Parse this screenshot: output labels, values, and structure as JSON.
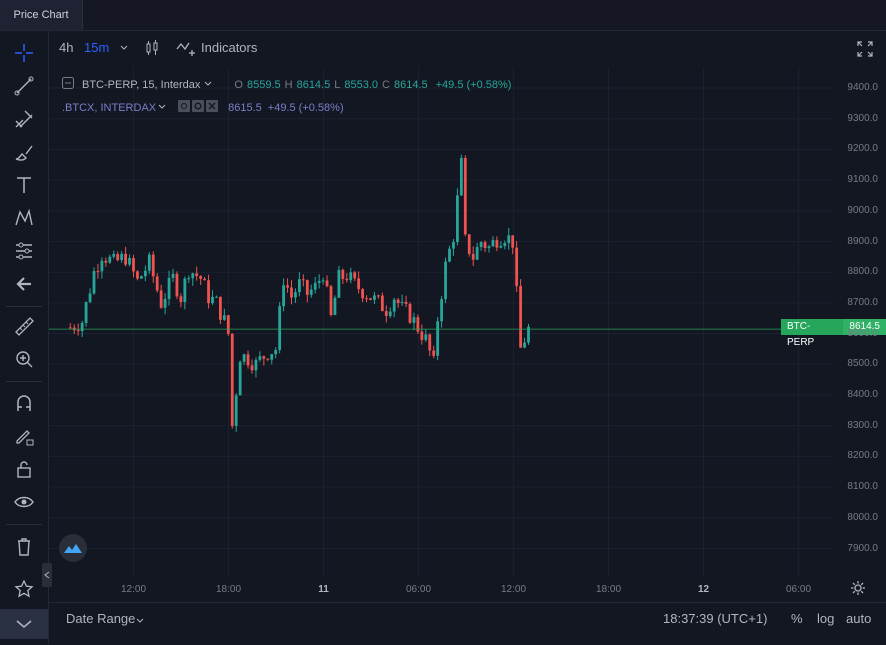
{
  "tab": {
    "title": "Price Chart"
  },
  "toolbar": {
    "intervals": [
      "4h",
      "15m"
    ],
    "indicators_label": "Indicators"
  },
  "legend": {
    "symbol": "BTC-PERP, 15, Interdax",
    "o_label": "O",
    "o": "8559.5",
    "h_label": "H",
    "h": "8614.5",
    "l_label": "L",
    "l": "8553.0",
    "c_label": "C",
    "c": "8614.5",
    "change": "+49.5 (+0.58%)"
  },
  "compare": {
    "symbol": ".BTCX, INTERDAX",
    "price": "8615.5",
    "change": "+49.5 (+0.58%)"
  },
  "price_tag": {
    "symbol": "BTC-PERP",
    "value": "8614.5"
  },
  "y_ticks": [
    "9400.0",
    "9300.0",
    "9200.0",
    "9100.0",
    "9000.0",
    "8900.0",
    "8800.0",
    "8700.0",
    "8600.0",
    "8500.0",
    "8400.0",
    "8300.0",
    "8200.0",
    "8100.0",
    "8000.0",
    "7900.0"
  ],
  "x_ticks": [
    {
      "label": "12:00",
      "bold": false
    },
    {
      "label": "18:00",
      "bold": false
    },
    {
      "label": "11",
      "bold": true
    },
    {
      "label": "06:00",
      "bold": false
    },
    {
      "label": "12:00",
      "bold": false
    },
    {
      "label": "18:00",
      "bold": false
    },
    {
      "label": "12",
      "bold": true
    },
    {
      "label": "06:00",
      "bold": false
    }
  ],
  "bottom": {
    "date_range": "Date Range",
    "time": "18:37:39 (UTC+1)",
    "percent": "%",
    "log": "log",
    "auto": "auto"
  },
  "colors": {
    "up": "#26a69a",
    "down": "#ef5350",
    "accent": "#2962ff"
  },
  "chart_data": {
    "type": "candlestick",
    "ylim": [
      7850,
      9450
    ],
    "x_range_hours": [
      8,
      35
    ],
    "last_price": 8614.5,
    "series": [
      {
        "t": 8.0,
        "close": 8620
      },
      {
        "t": 8.75,
        "close": 8640
      },
      {
        "t": 9.5,
        "close": 8800
      },
      {
        "t": 10.0,
        "close": 8860
      },
      {
        "t": 10.75,
        "close": 8830
      },
      {
        "t": 11.5,
        "close": 8850
      },
      {
        "t": 12.25,
        "close": 8770
      },
      {
        "t": 13.0,
        "close": 8830
      },
      {
        "t": 13.75,
        "close": 8700
      },
      {
        "t": 14.5,
        "close": 8780
      },
      {
        "t": 15.0,
        "close": 8720
      },
      {
        "t": 15.5,
        "close": 8810
      },
      {
        "t": 16.25,
        "close": 8780
      },
      {
        "t": 16.75,
        "close": 8720
      },
      {
        "t": 17.25,
        "close": 8700
      },
      {
        "t": 17.75,
        "close": 8640
      },
      {
        "t": 18.0,
        "close": 8600
      },
      {
        "t": 18.25,
        "close": 8300
      },
      {
        "t": 18.75,
        "close": 8530
      },
      {
        "t": 19.25,
        "close": 8520
      },
      {
        "t": 19.75,
        "close": 8500
      },
      {
        "t": 20.5,
        "close": 8540
      },
      {
        "t": 21.0,
        "close": 8550
      },
      {
        "t": 21.5,
        "close": 8780
      },
      {
        "t": 22.0,
        "close": 8720
      },
      {
        "t": 22.5,
        "close": 8760
      },
      {
        "t": 23.0,
        "close": 8730
      },
      {
        "t": 23.5,
        "close": 8750
      },
      {
        "t": 24.0,
        "close": 8800
      },
      {
        "t": 24.5,
        "close": 8650
      },
      {
        "t": 25.0,
        "close": 8780
      },
      {
        "t": 25.5,
        "close": 8790
      },
      {
        "t": 26.0,
        "close": 8760
      },
      {
        "t": 26.5,
        "close": 8740
      },
      {
        "t": 27.0,
        "close": 8720
      },
      {
        "t": 27.5,
        "close": 8700
      },
      {
        "t": 28.0,
        "close": 8680
      },
      {
        "t": 28.5,
        "close": 8720
      },
      {
        "t": 29.0,
        "close": 8680
      },
      {
        "t": 29.5,
        "close": 8660
      },
      {
        "t": 30.0,
        "close": 8620
      },
      {
        "t": 30.5,
        "close": 8580
      },
      {
        "t": 31.0,
        "close": 8500
      },
      {
        "t": 31.25,
        "close": 8650
      },
      {
        "t": 31.75,
        "close": 8820
      },
      {
        "t": 32.25,
        "close": 8920
      },
      {
        "t": 32.75,
        "close": 9150
      },
      {
        "t": 33.0,
        "close": 8900
      },
      {
        "t": 33.5,
        "close": 8850
      },
      {
        "t": 34.0,
        "close": 8900
      },
      {
        "t": 34.5,
        "close": 8880
      },
      {
        "t": 35.0,
        "close": 8910
      },
      {
        "t": 35.5,
        "close": 8920
      },
      {
        "t": 36.0,
        "close": 8900
      },
      {
        "t": 36.5,
        "close": 8550
      },
      {
        "t": 37.0,
        "close": 8614.5
      }
    ]
  }
}
